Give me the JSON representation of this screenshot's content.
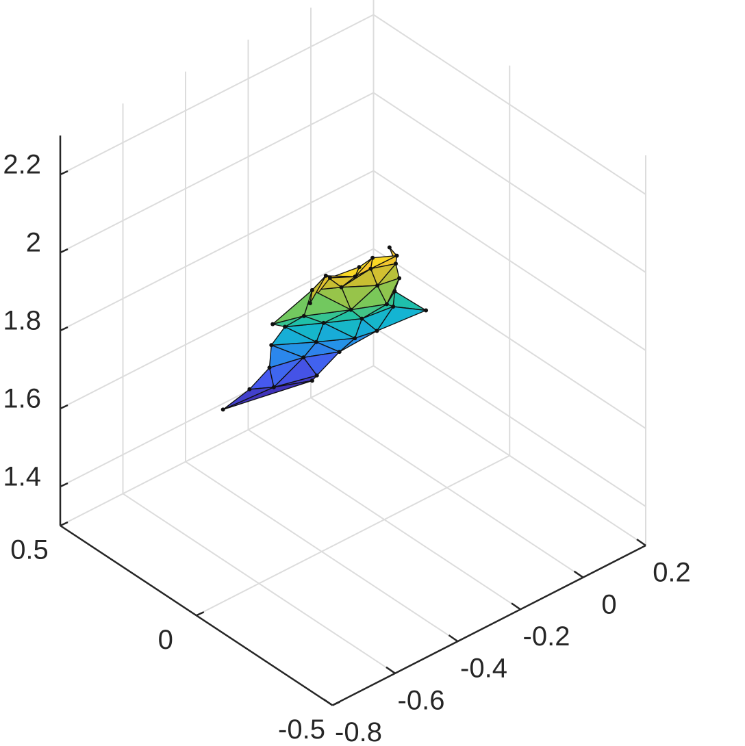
{
  "chart_data": {
    "type": "surface-mesh-3d",
    "title": "",
    "xlabel": "",
    "ylabel": "",
    "zlabel": "",
    "grid": true,
    "colormap": "parula",
    "axes": {
      "x": {
        "ticks": [
          -0.8,
          -0.6,
          -0.4,
          -0.2,
          0,
          0.2
        ],
        "tick_labels": [
          "-0.8",
          "-0.6",
          "-0.4",
          "-0.2",
          "0",
          "0.2"
        ],
        "lim": [
          -0.8,
          0.2
        ]
      },
      "y": {
        "ticks": [
          -0.5,
          0,
          0.5
        ],
        "tick_labels": [
          "-0.5",
          "0",
          "0.5"
        ],
        "lim": [
          -0.5,
          0.5
        ]
      },
      "z": {
        "ticks": [
          1.4,
          1.6,
          1.8,
          2.0,
          2.2
        ],
        "tick_labels": [
          "1.4",
          "1.6",
          "1.8",
          "2",
          "2.2"
        ],
        "lim": [
          1.3,
          2.3
        ]
      }
    },
    "vertices": [
      [
        -0.28,
        0.0,
        1.98
      ],
      [
        -0.22,
        0.02,
        1.97
      ],
      [
        -0.16,
        0.0,
        1.96
      ],
      [
        -0.14,
        0.05,
        1.95
      ],
      [
        -0.33,
        0.05,
        1.95
      ],
      [
        -0.3,
        0.1,
        1.92
      ],
      [
        -0.25,
        0.05,
        1.92
      ],
      [
        -0.2,
        0.05,
        1.92
      ],
      [
        -0.12,
        0.05,
        1.9
      ],
      [
        -0.35,
        0.1,
        1.87
      ],
      [
        -0.3,
        0.15,
        1.86
      ],
      [
        -0.25,
        0.1,
        1.87
      ],
      [
        -0.17,
        0.06,
        1.86
      ],
      [
        -0.1,
        0.06,
        1.85
      ],
      [
        -0.4,
        0.18,
        1.8
      ],
      [
        -0.3,
        0.18,
        1.78
      ],
      [
        -0.22,
        0.1,
        1.8
      ],
      [
        -0.14,
        0.06,
        1.8
      ],
      [
        -0.08,
        0.1,
        1.79
      ],
      [
        -0.3,
        0.25,
        1.72
      ],
      [
        -0.22,
        0.2,
        1.72
      ],
      [
        -0.15,
        0.14,
        1.73
      ],
      [
        -0.05,
        0.14,
        1.72
      ],
      [
        0.02,
        0.1,
        1.7
      ],
      [
        -0.3,
        0.3,
        1.65
      ],
      [
        -0.2,
        0.25,
        1.64
      ],
      [
        -0.12,
        0.2,
        1.64
      ],
      [
        -0.05,
        0.2,
        1.63
      ],
      [
        -0.28,
        0.33,
        1.57
      ],
      [
        -0.18,
        0.32,
        1.56
      ],
      [
        -0.1,
        0.28,
        1.56
      ],
      [
        -0.3,
        0.38,
        1.5
      ],
      [
        -0.24,
        0.36,
        1.49
      ],
      [
        -0.12,
        0.34,
        1.48
      ],
      [
        -0.35,
        0.42,
        1.45
      ],
      [
        -0.1,
        0.38,
        1.44
      ]
    ],
    "faces": [
      [
        0,
        1,
        6
      ],
      [
        0,
        6,
        4
      ],
      [
        1,
        2,
        7
      ],
      [
        1,
        7,
        6
      ],
      [
        2,
        3,
        8
      ],
      [
        2,
        8,
        7
      ],
      [
        4,
        6,
        5
      ],
      [
        4,
        5,
        9
      ],
      [
        6,
        7,
        11
      ],
      [
        6,
        11,
        5
      ],
      [
        7,
        8,
        12
      ],
      [
        7,
        12,
        11
      ],
      [
        8,
        13,
        12
      ],
      [
        9,
        5,
        10
      ],
      [
        5,
        11,
        10
      ],
      [
        9,
        10,
        14
      ],
      [
        10,
        15,
        14
      ],
      [
        10,
        11,
        16
      ],
      [
        10,
        16,
        15
      ],
      [
        11,
        12,
        16
      ],
      [
        12,
        13,
        17
      ],
      [
        12,
        17,
        16
      ],
      [
        13,
        18,
        17
      ],
      [
        14,
        15,
        19
      ],
      [
        15,
        16,
        20
      ],
      [
        15,
        20,
        19
      ],
      [
        16,
        17,
        21
      ],
      [
        16,
        21,
        20
      ],
      [
        17,
        18,
        22
      ],
      [
        17,
        22,
        21
      ],
      [
        18,
        23,
        22
      ],
      [
        19,
        20,
        25
      ],
      [
        19,
        25,
        24
      ],
      [
        20,
        21,
        26
      ],
      [
        20,
        26,
        25
      ],
      [
        21,
        22,
        27
      ],
      [
        21,
        27,
        26
      ],
      [
        22,
        23,
        27
      ],
      [
        24,
        25,
        29
      ],
      [
        24,
        29,
        28
      ],
      [
        25,
        26,
        30
      ],
      [
        25,
        30,
        29
      ],
      [
        26,
        27,
        30
      ],
      [
        28,
        29,
        32
      ],
      [
        28,
        32,
        31
      ],
      [
        29,
        30,
        33
      ],
      [
        29,
        33,
        32
      ],
      [
        31,
        32,
        34
      ],
      [
        32,
        33,
        35
      ],
      [
        32,
        35,
        34
      ]
    ]
  }
}
